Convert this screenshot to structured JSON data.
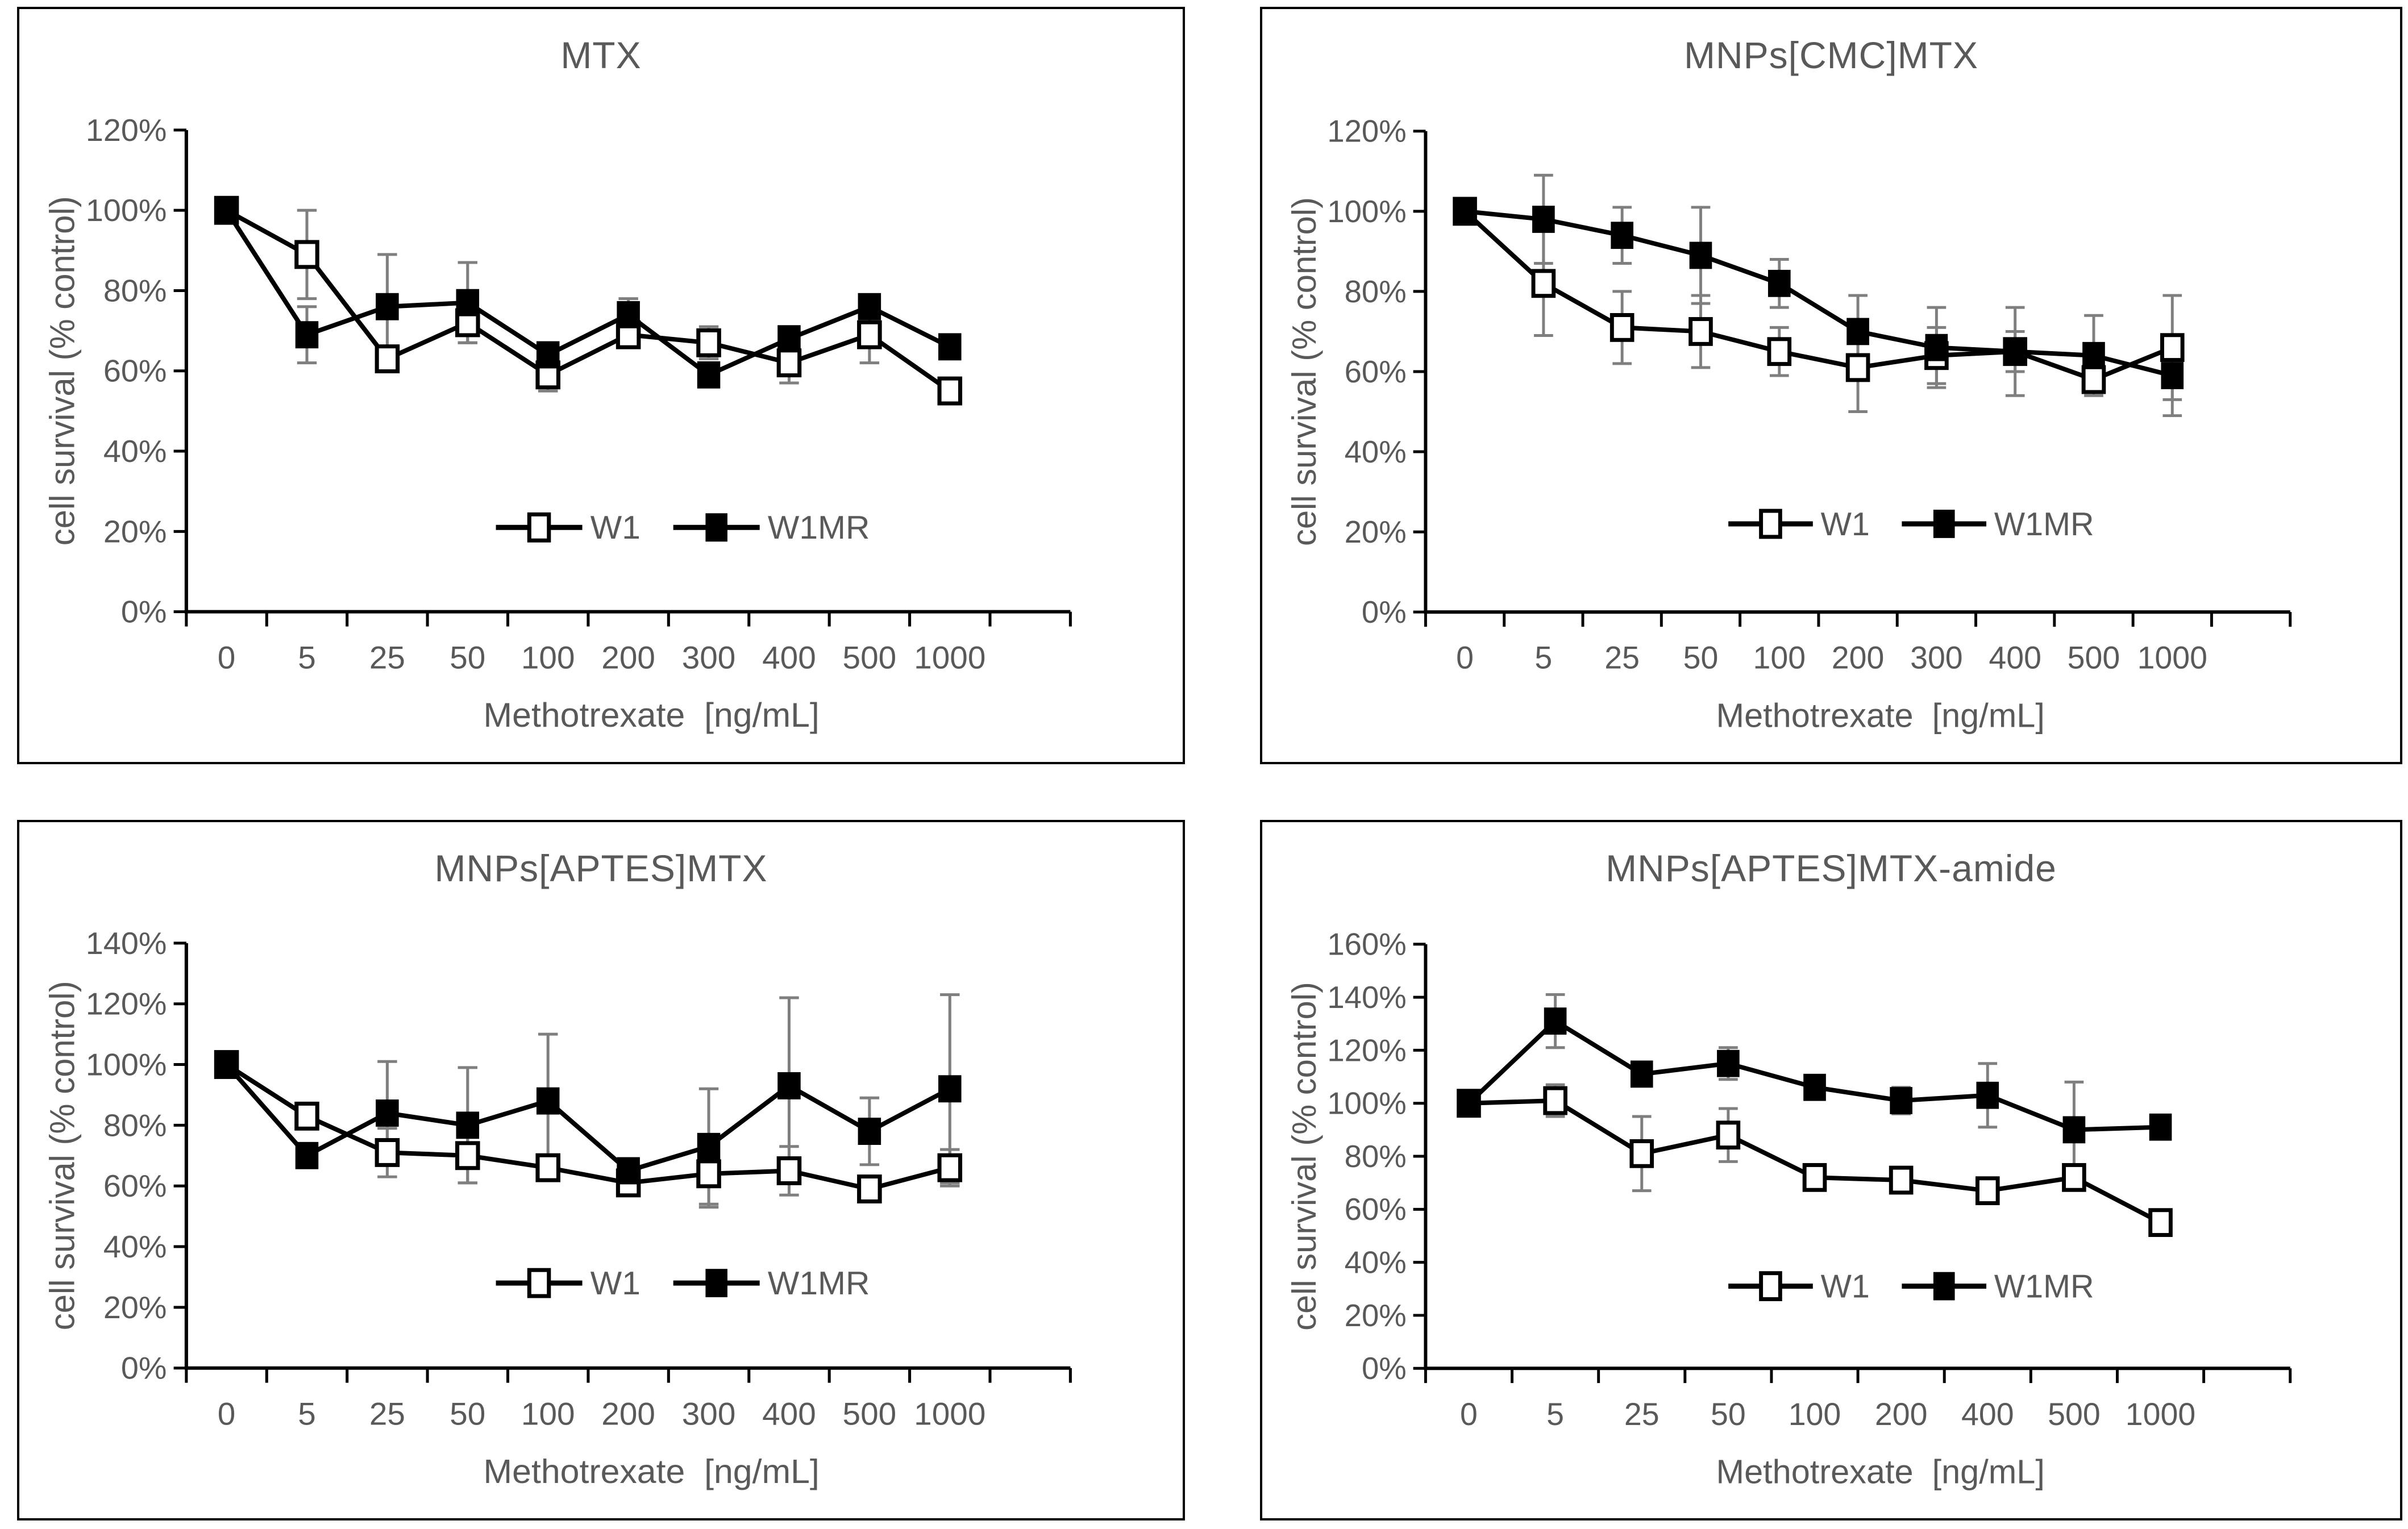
{
  "style": {
    "background": "#ffffff",
    "panel_border_color": "#000000",
    "axis_color": "#000000",
    "series_color": "#000000",
    "text_color": "#595959",
    "error_bar_color": "#7f7f7f",
    "open_marker_fill": "#ffffff"
  },
  "chart_data": [
    {
      "type": "line",
      "title": "MTX",
      "xlabel": "Methotrexate  [ng/mL]",
      "ylabel": "cell survival (% control)",
      "categories": [
        "0",
        "5",
        "25",
        "50",
        "100",
        "200",
        "300",
        "400",
        "500",
        "1000"
      ],
      "ylim": [
        0,
        120
      ],
      "ytick_step": 20,
      "ytick_format": "percent",
      "grid": false,
      "legend_position": "inside-bottom-center",
      "legend_y_value": 21,
      "series": [
        {
          "name": "W1",
          "marker": "open-square",
          "values": [
            100,
            89,
            63,
            72,
            59,
            69,
            67,
            62,
            69,
            55
          ],
          "errors": [
            2,
            11,
            3,
            5,
            4,
            3,
            4,
            5,
            7,
            3
          ]
        },
        {
          "name": "W1MR",
          "marker": "filled-square",
          "values": [
            100,
            69,
            76,
            77,
            64,
            74,
            59,
            68,
            76,
            66
          ],
          "errors": [
            2,
            7,
            13,
            10,
            3,
            4,
            3,
            3,
            3,
            3
          ]
        }
      ]
    },
    {
      "type": "line",
      "title": "MNPs[CMC]MTX",
      "xlabel": "Methotrexate  [ng/mL]",
      "ylabel": "cell survival (% control)",
      "categories": [
        "0",
        "5",
        "25",
        "50",
        "100",
        "200",
        "300",
        "400",
        "500",
        "1000"
      ],
      "ylim": [
        0,
        120
      ],
      "ytick_step": 20,
      "ytick_format": "percent",
      "grid": false,
      "legend_position": "inside-bottom-center",
      "legend_y_value": 22,
      "series": [
        {
          "name": "W1",
          "marker": "open-square",
          "values": [
            100,
            82,
            71,
            70,
            65,
            61,
            64,
            65,
            58,
            66
          ],
          "errors": [
            2,
            13,
            9,
            9,
            6,
            11,
            7,
            11,
            3,
            13
          ]
        },
        {
          "name": "W1MR",
          "marker": "filled-square",
          "values": [
            100,
            98,
            94,
            89,
            82,
            70,
            66,
            65,
            64,
            59
          ],
          "errors": [
            2,
            11,
            7,
            12,
            6,
            9,
            10,
            5,
            10,
            10
          ]
        }
      ]
    },
    {
      "type": "line",
      "title": "MNPs[APTES]MTX",
      "xlabel": "Methotrexate  [ng/mL]",
      "ylabel": "cell survival (% control)",
      "categories": [
        "0",
        "5",
        "25",
        "50",
        "100",
        "200",
        "300",
        "400",
        "500",
        "1000"
      ],
      "ylim": [
        0,
        140
      ],
      "ytick_step": 20,
      "ytick_format": "percent",
      "grid": false,
      "legend_position": "inside-bottom-center",
      "legend_y_value": 28,
      "series": [
        {
          "name": "W1",
          "marker": "open-square",
          "values": [
            100,
            83,
            71,
            70,
            66,
            61,
            64,
            65,
            59,
            66
          ],
          "errors": [
            2,
            3,
            8,
            9,
            4,
            3,
            11,
            8,
            3,
            6
          ]
        },
        {
          "name": "W1MR",
          "marker": "filled-square",
          "values": [
            100,
            70,
            84,
            80,
            88,
            65,
            73,
            93,
            78,
            92
          ],
          "errors": [
            2,
            4,
            17,
            19,
            22,
            3,
            19,
            29,
            11,
            31
          ]
        }
      ]
    },
    {
      "type": "line",
      "title": "MNPs[APTES]MTX-amide",
      "xlabel": "Methotrexate  [ng/mL]",
      "ylabel": "cell survival (% control)",
      "categories": [
        "0",
        "5",
        "25",
        "50",
        "100",
        "200",
        "400",
        "500",
        "1000"
      ],
      "ylim": [
        0,
        160
      ],
      "ytick_step": 20,
      "ytick_format": "percent",
      "grid": false,
      "legend_position": "inside-bottom-center",
      "legend_y_value": 31,
      "series": [
        {
          "name": "W1",
          "marker": "open-square",
          "values": [
            100,
            101,
            81,
            88,
            72,
            71,
            67,
            72,
            55
          ],
          "errors": [
            2,
            6,
            14,
            10,
            3,
            3,
            3,
            3,
            3
          ]
        },
        {
          "name": "W1MR",
          "marker": "filled-square",
          "values": [
            100,
            131,
            111,
            115,
            106,
            101,
            103,
            90,
            91
          ],
          "errors": [
            2,
            10,
            4,
            6,
            4,
            5,
            12,
            18,
            3
          ]
        }
      ]
    }
  ]
}
